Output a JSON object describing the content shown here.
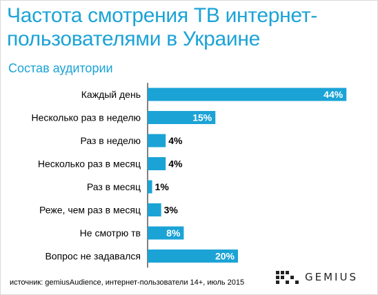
{
  "title": "Частота смотрения ТВ интернет-пользователями в Украине",
  "subtitle": "Состав аудитории",
  "source": "источник: gemiusAudience, интернет-пользователи 14+, июль 2015",
  "brand": {
    "name": "GEMIUS",
    "icon": "gemius-dots-icon"
  },
  "colors": {
    "bar": "#1ba3d6",
    "title": "#1ba3d6",
    "label_inside": "#ffffff",
    "label_outside": "#000000"
  },
  "chart_data": {
    "type": "bar",
    "orientation": "horizontal",
    "categories": [
      "Каждый день",
      "Несколько раз в неделю",
      "Раз в неделю",
      "Несколько раз в месяц",
      "Раз в месяц",
      "Реже, чем раз в месяц",
      "Не смотрю тв",
      "Вопрос не задавался"
    ],
    "values": [
      44,
      15,
      4,
      4,
      1,
      3,
      8,
      20
    ],
    "value_labels": [
      "44%",
      "15%",
      "4%",
      "4%",
      "1%",
      "3%",
      "8%",
      "20%"
    ],
    "xlim": [
      0,
      100
    ],
    "grid": false,
    "legend": "none"
  }
}
